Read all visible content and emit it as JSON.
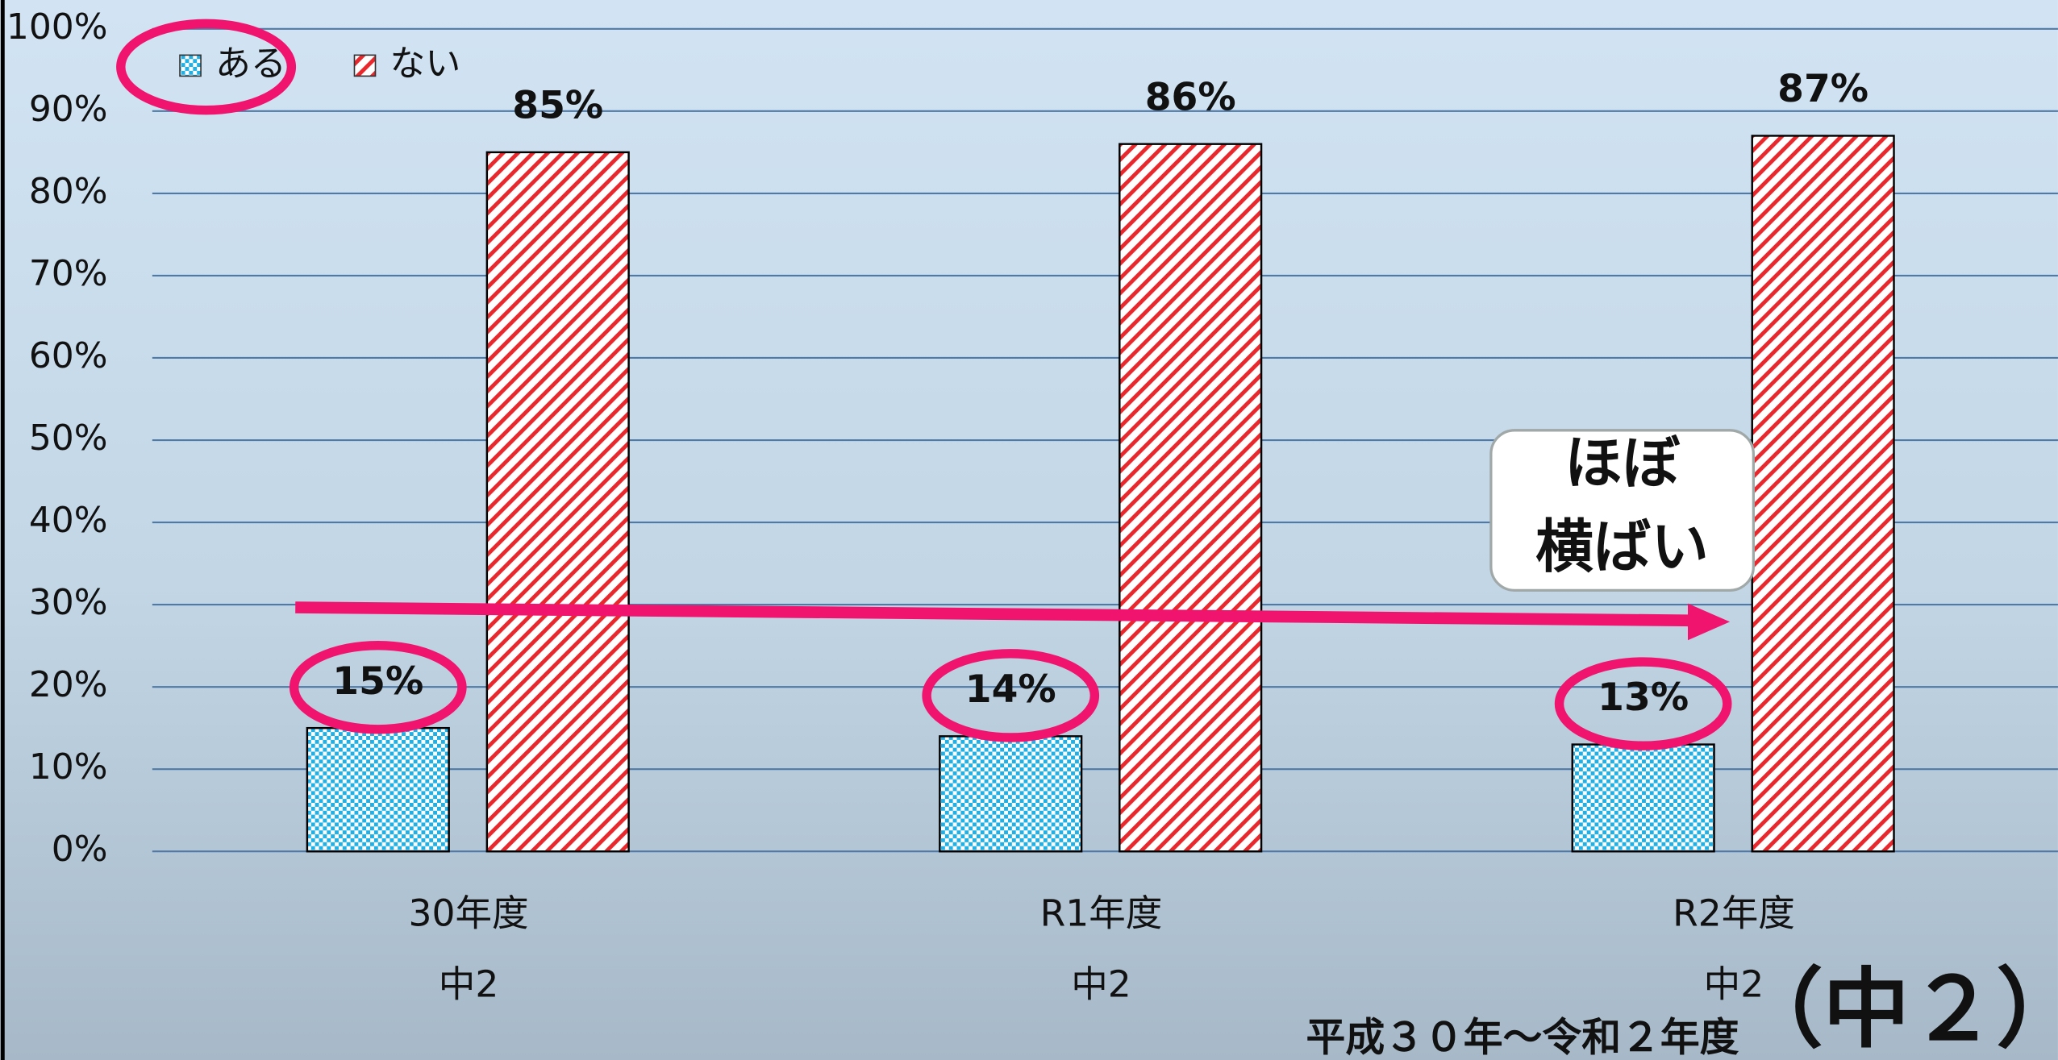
{
  "chart_data": {
    "type": "bar",
    "categories": [
      "30年度",
      "R1年度",
      "R2年度"
    ],
    "sub_categories": [
      "中2",
      "中2",
      "中2"
    ],
    "series": [
      {
        "name": "ある",
        "color": "#1fb0e6",
        "values": [
          15,
          14,
          13
        ],
        "value_labels": [
          "15%",
          "14%",
          "13%"
        ]
      },
      {
        "name": "ない",
        "color": "#e8282d",
        "values": [
          85,
          86,
          87
        ],
        "value_labels": [
          "85%",
          "86%",
          "87%"
        ]
      }
    ],
    "ylim": [
      0,
      100
    ],
    "yticks": [
      {
        "value": 0,
        "label": "0%"
      },
      {
        "value": 10,
        "label": "10%"
      },
      {
        "value": 20,
        "label": "20%"
      },
      {
        "value": 30,
        "label": "30%"
      },
      {
        "value": 40,
        "label": "40%"
      },
      {
        "value": 50,
        "label": "50%"
      },
      {
        "value": 60,
        "label": "60%"
      },
      {
        "value": 70,
        "label": "70%"
      },
      {
        "value": 80,
        "label": "80%"
      },
      {
        "value": 90,
        "label": "90%"
      },
      {
        "value": 100,
        "label": "100%"
      }
    ],
    "grid": true,
    "callout": [
      "ほぼ",
      "横ばい"
    ],
    "footer": "平成３０年～令和２年度",
    "footer_big": "（中２）"
  }
}
